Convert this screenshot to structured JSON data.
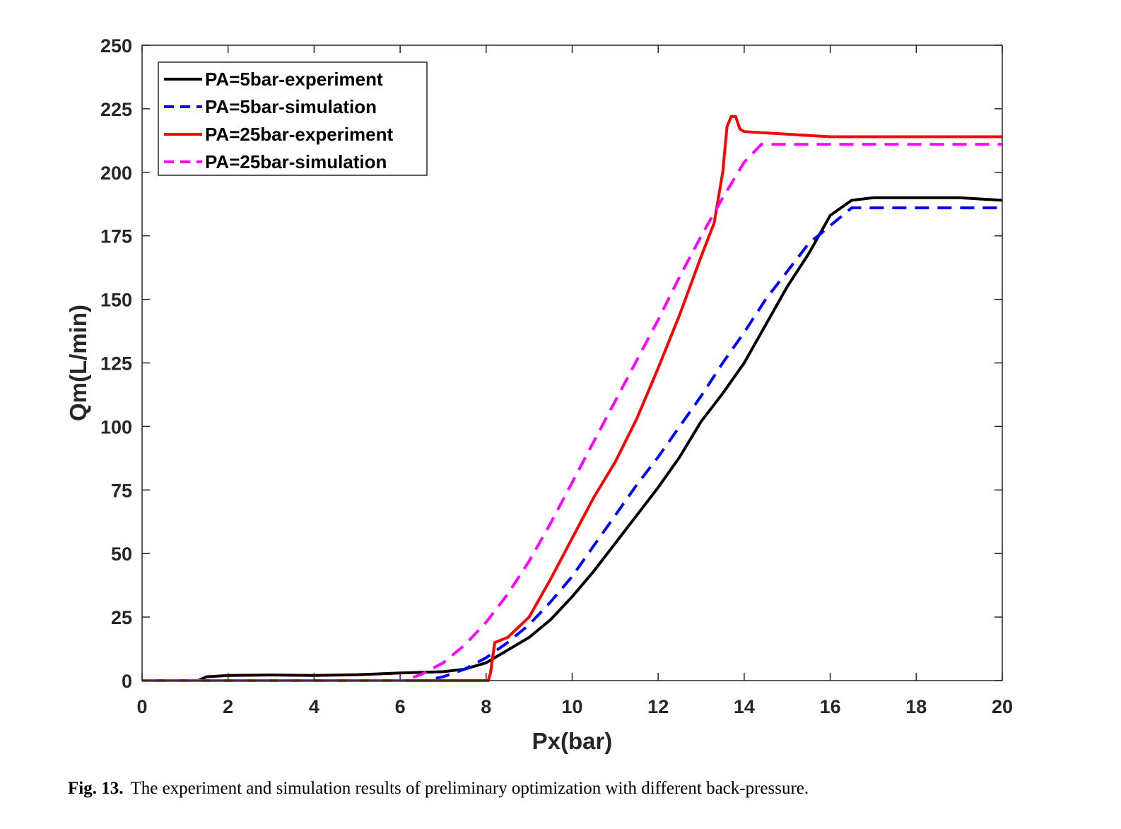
{
  "chart_data": {
    "type": "line",
    "xlabel": "Px(bar)",
    "ylabel": "Qm(L/min)",
    "xlim": [
      0,
      20
    ],
    "ylim": [
      0,
      250
    ],
    "xticks": [
      0,
      2,
      4,
      6,
      8,
      10,
      12,
      14,
      16,
      18,
      20
    ],
    "yticks": [
      0,
      25,
      50,
      75,
      100,
      125,
      150,
      175,
      200,
      225,
      250
    ],
    "grid": false,
    "legend_position": "top-left",
    "series": [
      {
        "name": "PA=5bar-experiment",
        "color": "#000000",
        "dash": "solid",
        "x": [
          0,
          1.3,
          1.5,
          2,
          3,
          4,
          5,
          6,
          7,
          7.5,
          8,
          8.3,
          8.6,
          9,
          9.5,
          10,
          10.5,
          11,
          11.5,
          12,
          12.5,
          13,
          13.5,
          14,
          14.5,
          15,
          15.5,
          16,
          16.5,
          17,
          18,
          19,
          20
        ],
        "y": [
          0,
          0,
          1.5,
          2,
          2.2,
          2,
          2.3,
          3,
          3.5,
          4.5,
          7,
          10,
          13,
          17,
          24,
          33,
          43,
          54,
          65,
          76,
          88,
          102,
          113,
          125,
          140,
          155,
          168,
          183,
          189,
          190,
          190,
          190,
          189
        ]
      },
      {
        "name": "PA=5bar-simulation",
        "color": "#0000ff",
        "dash": "dashed",
        "x": [
          0,
          6.6,
          7,
          7.5,
          8,
          8.5,
          9,
          9.5,
          10,
          10.5,
          11,
          11.5,
          12,
          12.5,
          13,
          13.5,
          14,
          14.5,
          15,
          15.5,
          16,
          16.5,
          17,
          18,
          19,
          20
        ],
        "y": [
          0,
          0,
          1.5,
          4.5,
          9,
          15,
          22,
          31,
          41,
          53,
          65,
          77,
          88,
          100,
          112,
          125,
          137,
          150,
          161,
          172,
          179,
          186,
          186,
          186,
          186,
          186
        ]
      },
      {
        "name": "PA=25bar-experiment",
        "color": "#ff0000",
        "dash": "solid",
        "x": [
          0,
          8.05,
          8.1,
          8.2,
          8.5,
          9,
          9.5,
          10,
          10.5,
          11,
          11.5,
          12,
          12.5,
          13,
          13.3,
          13.5,
          13.6,
          13.7,
          13.8,
          13.9,
          14,
          15,
          16,
          17,
          18,
          19,
          20
        ],
        "y": [
          0,
          0,
          3,
          15,
          17,
          25,
          40,
          56,
          72,
          86,
          103,
          123,
          144,
          167,
          180,
          200,
          218,
          222,
          222,
          217,
          216,
          215,
          214,
          214,
          214,
          214,
          214
        ]
      },
      {
        "name": "PA=25bar-simulation",
        "color": "#ff00ff",
        "dash": "dashed",
        "x": [
          0,
          6.1,
          6.5,
          7,
          7.5,
          8,
          8.5,
          9,
          9.5,
          10,
          10.5,
          11,
          11.5,
          12,
          12.5,
          13,
          13.5,
          14,
          14.4,
          15,
          16,
          17,
          18,
          19,
          20
        ],
        "y": [
          0,
          0,
          2.5,
          7,
          14,
          23,
          34,
          47,
          62,
          78,
          94,
          110,
          126,
          142,
          159,
          175,
          190,
          204,
          211,
          211,
          211,
          211,
          211,
          211,
          211
        ]
      }
    ]
  },
  "caption": {
    "label": "Fig. 13.",
    "text": "The experiment and simulation results of preliminary optimization with different back-pressure."
  }
}
